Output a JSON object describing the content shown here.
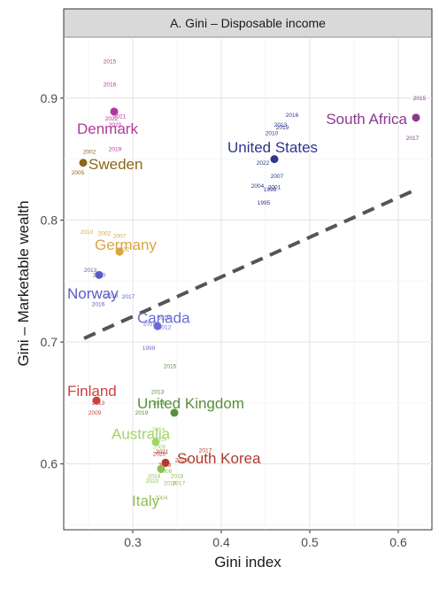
{
  "chart_data": {
    "type": "scatter",
    "title": "A. Gini – Disposable income",
    "xlabel": "Gini index",
    "ylabel": "Gini – Marketable wealth",
    "xlim": [
      0.222,
      0.638
    ],
    "ylim": [
      0.546,
      0.95
    ],
    "xticks": [
      0.3,
      0.4,
      0.5,
      0.6
    ],
    "yticks": [
      0.6,
      0.7,
      0.8,
      0.9
    ],
    "xtick_labels": [
      "0.3",
      "0.4",
      "0.5",
      "0.6"
    ],
    "ytick_labels": [
      "0.6",
      "0.7",
      "0.8",
      "0.9"
    ],
    "grid": true,
    "trend_line": {
      "style": "dashed",
      "color": "#555555",
      "x": [
        0.245,
        0.62
      ],
      "y": [
        0.703,
        0.825
      ]
    },
    "series": [
      {
        "name": "Denmark",
        "color": "#b0389a",
        "label": {
          "text": "Denmark",
          "x": 0.237,
          "y": 0.875,
          "anchor": "start"
        },
        "point": {
          "x": 0.279,
          "y": 0.889
        },
        "years": [
          {
            "year": "2015",
            "x": 0.274,
            "y": 0.93
          },
          {
            "year": "2016",
            "x": 0.274,
            "y": 0.911
          },
          {
            "year": "2021",
            "x": 0.285,
            "y": 0.885
          },
          {
            "year": "2022",
            "x": 0.276,
            "y": 0.883
          },
          {
            "year": "2020",
            "x": 0.28,
            "y": 0.878
          },
          {
            "year": "2019",
            "x": 0.28,
            "y": 0.858
          }
        ]
      },
      {
        "name": "Sweden",
        "color": "#8c6718",
        "label": {
          "text": "Sweden",
          "x": 0.25,
          "y": 0.846,
          "anchor": "start"
        },
        "point": {
          "x": 0.244,
          "y": 0.847
        },
        "years": [
          {
            "year": "2002",
            "x": 0.251,
            "y": 0.856
          },
          {
            "year": "2005",
            "x": 0.238,
            "y": 0.839
          }
        ]
      },
      {
        "name": "South Africa",
        "color": "#8a3b8f",
        "label": {
          "text": "South Africa",
          "x": 0.61,
          "y": 0.883,
          "anchor": "end"
        },
        "point": {
          "x": 0.62,
          "y": 0.884
        },
        "years": [
          {
            "year": "2015",
            "x": 0.624,
            "y": 0.9
          },
          {
            "year": "2017",
            "x": 0.616,
            "y": 0.867
          }
        ]
      },
      {
        "name": "United States",
        "color": "#2e358f",
        "label": {
          "text": "United States",
          "x": 0.458,
          "y": 0.86,
          "anchor": "middle"
        },
        "point": {
          "x": 0.46,
          "y": 0.85
        },
        "years": [
          {
            "year": "2016",
            "x": 0.48,
            "y": 0.886
          },
          {
            "year": "2013",
            "x": 0.467,
            "y": 0.878
          },
          {
            "year": "2019",
            "x": 0.469,
            "y": 0.876
          },
          {
            "year": "2010",
            "x": 0.457,
            "y": 0.871
          },
          {
            "year": "2022",
            "x": 0.447,
            "y": 0.847
          },
          {
            "year": "2007",
            "x": 0.463,
            "y": 0.836
          },
          {
            "year": "2004",
            "x": 0.441,
            "y": 0.828
          },
          {
            "year": "2001",
            "x": 0.46,
            "y": 0.827
          },
          {
            "year": "1998",
            "x": 0.455,
            "y": 0.825
          },
          {
            "year": "1995",
            "x": 0.448,
            "y": 0.814
          }
        ]
      },
      {
        "name": "Germany",
        "color": "#d9a441",
        "label": {
          "text": "Germany",
          "x": 0.257,
          "y": 0.78,
          "anchor": "start"
        },
        "point": {
          "x": 0.285,
          "y": 0.774
        },
        "years": [
          {
            "year": "2010",
            "x": 0.248,
            "y": 0.79
          },
          {
            "year": "2002",
            "x": 0.268,
            "y": 0.789
          },
          {
            "year": "2007",
            "x": 0.285,
            "y": 0.787
          },
          {
            "year": "2012",
            "x": 0.289,
            "y": 0.776
          }
        ]
      },
      {
        "name": "Norway",
        "color": "#5b5bc7",
        "label": {
          "text": "Norway",
          "x": 0.226,
          "y": 0.74,
          "anchor": "start"
        },
        "point": {
          "x": 0.262,
          "y": 0.755
        },
        "years": [
          {
            "year": "2013",
            "x": 0.252,
            "y": 0.759
          },
          {
            "year": "2020",
            "x": 0.262,
            "y": 0.755
          },
          {
            "year": "2010",
            "x": 0.276,
            "y": 0.738
          },
          {
            "year": "2017",
            "x": 0.295,
            "y": 0.737
          },
          {
            "year": "2016",
            "x": 0.261,
            "y": 0.731
          }
        ]
      },
      {
        "name": "Canada",
        "color": "#6a6ad6",
        "label": {
          "text": "Canada",
          "x": 0.305,
          "y": 0.72,
          "anchor": "start"
        },
        "point": {
          "x": 0.328,
          "y": 0.713
        },
        "years": [
          {
            "year": "2016",
            "x": 0.335,
            "y": 0.72
          },
          {
            "year": "2019",
            "x": 0.319,
            "y": 0.715
          },
          {
            "year": "2012",
            "x": 0.336,
            "y": 0.712
          },
          {
            "year": "1999",
            "x": 0.318,
            "y": 0.695
          }
        ]
      },
      {
        "name": "Finland",
        "color": "#cc3f3f",
        "label": {
          "text": "Finland",
          "x": 0.226,
          "y": 0.66,
          "anchor": "start"
        },
        "point": {
          "x": 0.259,
          "y": 0.652
        },
        "years": [
          {
            "year": "2013",
            "x": 0.261,
            "y": 0.65
          },
          {
            "year": "2009",
            "x": 0.257,
            "y": 0.642
          }
        ]
      },
      {
        "name": "United Kingdom",
        "color": "#5a8f3a",
        "label": {
          "text": "United Kingdom",
          "x": 0.305,
          "y": 0.65,
          "anchor": "start"
        },
        "point": {
          "x": 0.347,
          "y": 0.642
        },
        "years": [
          {
            "year": "2015",
            "x": 0.342,
            "y": 0.68
          },
          {
            "year": "2013",
            "x": 0.328,
            "y": 0.659
          },
          {
            "year": "2016",
            "x": 0.33,
            "y": 0.65
          },
          {
            "year": "2019",
            "x": 0.31,
            "y": 0.642
          }
        ]
      },
      {
        "name": "Australia",
        "color": "#a3d46a",
        "label": {
          "text": "Australia",
          "x": 0.276,
          "y": 0.625,
          "anchor": "start"
        },
        "point": {
          "x": 0.326,
          "y": 0.618
        },
        "years": [
          {
            "year": "2014",
            "x": 0.329,
            "y": 0.628
          },
          {
            "year": "2010",
            "x": 0.331,
            "y": 0.62
          },
          {
            "year": "2006",
            "x": 0.33,
            "y": 0.614
          }
        ]
      },
      {
        "name": "South Korea",
        "color": "#b03a2e",
        "label": {
          "text": "South Korea",
          "x": 0.35,
          "y": 0.605,
          "anchor": "start"
        },
        "point": {
          "x": 0.337,
          "y": 0.601
        },
        "years": [
          {
            "year": "2020",
            "x": 0.33,
            "y": 0.608
          },
          {
            "year": "2021",
            "x": 0.333,
            "y": 0.61
          },
          {
            "year": "2017",
            "x": 0.382,
            "y": 0.611
          },
          {
            "year": "2019",
            "x": 0.336,
            "y": 0.599
          },
          {
            "year": "2013",
            "x": 0.355,
            "y": 0.603
          }
        ]
      },
      {
        "name": "Italy",
        "color": "#8fbf4f",
        "label": {
          "text": "Italy",
          "x": 0.299,
          "y": 0.57,
          "anchor": "start"
        },
        "point": {
          "x": 0.332,
          "y": 0.596
        },
        "years": [
          {
            "year": "2018",
            "x": 0.35,
            "y": 0.59
          },
          {
            "year": "2014",
            "x": 0.324,
            "y": 0.59
          },
          {
            "year": "2008",
            "x": 0.337,
            "y": 0.594
          },
          {
            "year": "2010",
            "x": 0.322,
            "y": 0.586
          },
          {
            "year": "2016",
            "x": 0.342,
            "y": 0.584
          },
          {
            "year": "2017",
            "x": 0.352,
            "y": 0.584
          },
          {
            "year": "2004",
            "x": 0.332,
            "y": 0.572
          }
        ]
      }
    ]
  }
}
